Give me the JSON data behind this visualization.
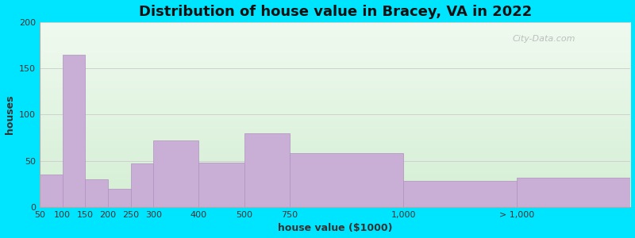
{
  "title": "Distribution of house value in Bracey, VA in 2022",
  "xlabel": "house value ($1000)",
  "ylabel": "houses",
  "background_outer": "#00e5ff",
  "bar_color": "#c9aed6",
  "bar_edgecolor": "#b090c0",
  "ylim": [
    0,
    200
  ],
  "yticks": [
    0,
    50,
    100,
    150,
    200
  ],
  "tick_labels": [
    "50",
    "100",
    "150",
    "200",
    "250",
    "300",
    "400",
    "500",
    "750",
    "1,000",
    "> 1,000"
  ],
  "bar_left_edges": [
    0,
    1,
    2,
    3,
    4,
    5,
    7,
    9,
    11,
    16,
    21
  ],
  "bar_right_edges": [
    1,
    2,
    3,
    4,
    5,
    7,
    9,
    11,
    16,
    21,
    26
  ],
  "bar_heights": [
    35,
    165,
    30,
    20,
    47,
    72,
    48,
    80,
    58,
    28,
    32
  ],
  "title_fontsize": 13,
  "axis_fontsize": 9,
  "tick_fontsize": 8,
  "watermark": "City-Data.com"
}
